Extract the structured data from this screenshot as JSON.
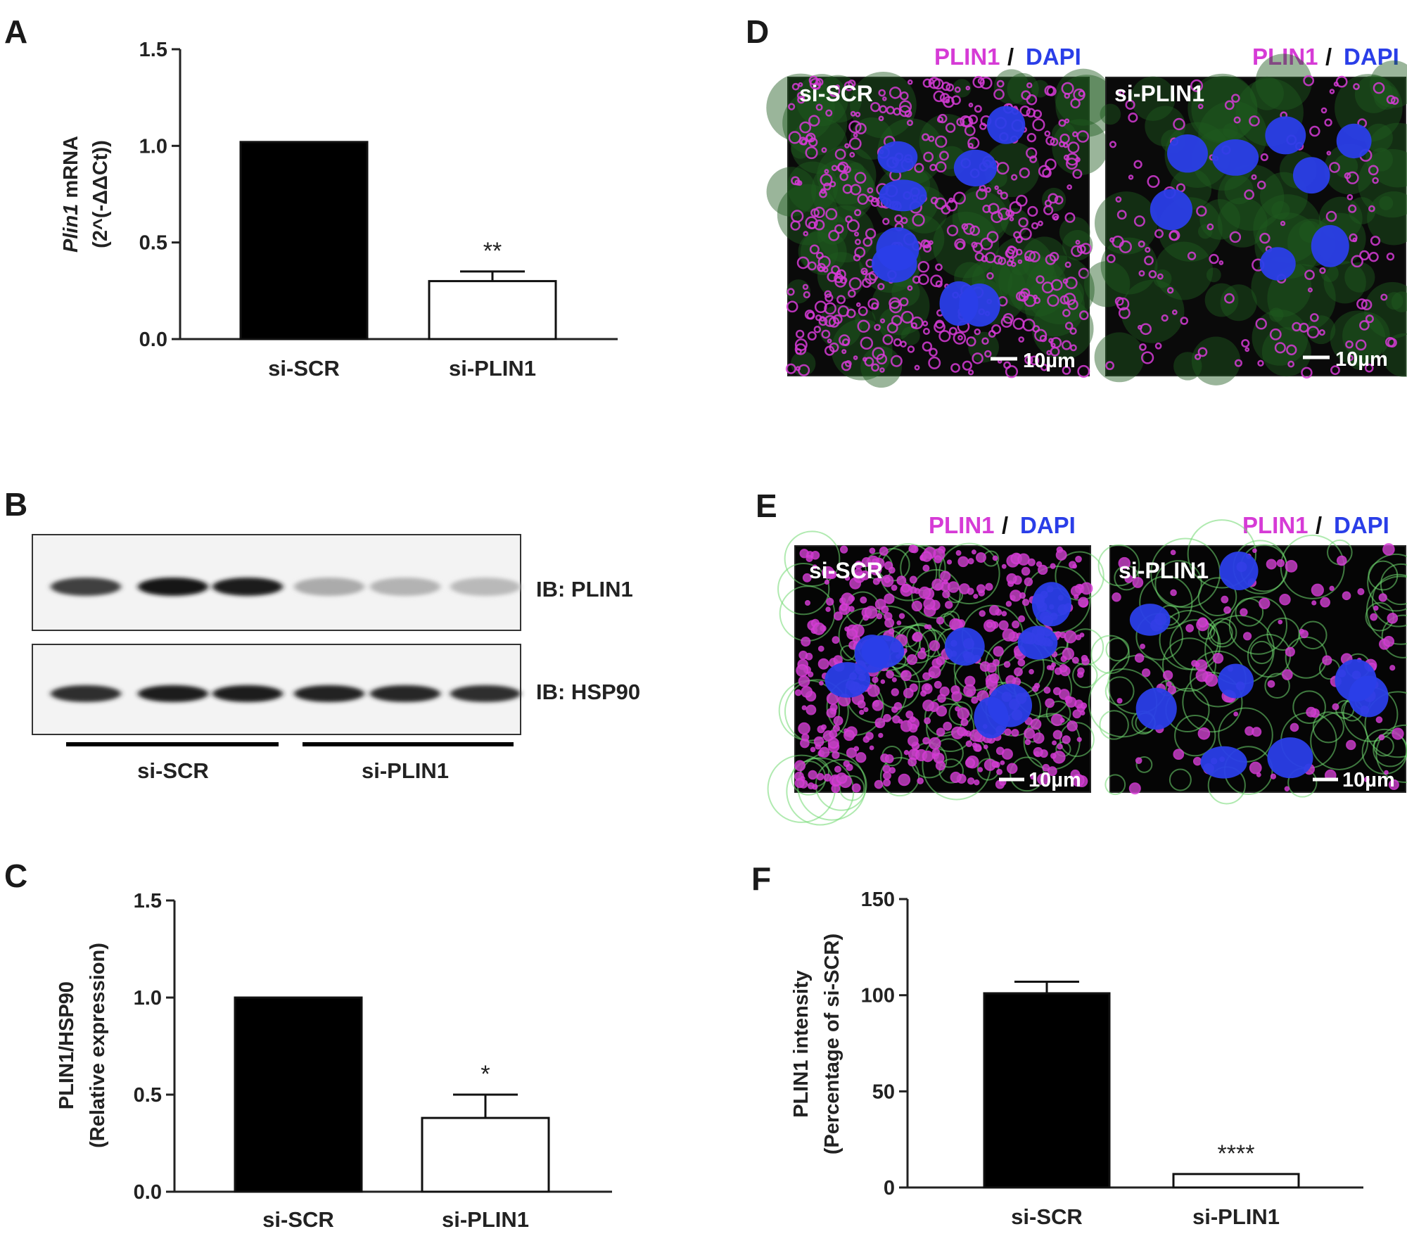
{
  "panels": {
    "A": "A",
    "B": "B",
    "C": "C",
    "D": "D",
    "E": "E",
    "F": "F"
  },
  "colors": {
    "plin1": "#d63bd6",
    "dapi": "#2a3ee8",
    "bar_scr": "#000000",
    "bar_plin1": "#ffffff"
  },
  "chart_data": [
    {
      "panel": "A",
      "type": "bar",
      "categories": [
        "si-SCR",
        "si-PLIN1"
      ],
      "values": [
        1.02,
        0.3
      ],
      "errors": [
        0,
        0.05
      ],
      "significance": [
        "",
        "**"
      ],
      "ylabel_italic": "Plin1",
      "ylabel_rest": " mRNA",
      "ylabel_line2": "(2^(-ΔΔCt))",
      "ylim": [
        0,
        1.5
      ],
      "yticks": [
        "0.0",
        "0.5",
        "1.0",
        "1.5"
      ],
      "grid": false
    },
    {
      "panel": "C",
      "type": "bar",
      "categories": [
        "si-SCR",
        "si-PLIN1"
      ],
      "values": [
        1.0,
        0.38
      ],
      "errors": [
        0,
        0.12
      ],
      "significance": [
        "",
        "*"
      ],
      "ylabel_line1": "PLIN1/HSP90",
      "ylabel_line2": "(Relative expression)",
      "ylim": [
        0,
        1.5
      ],
      "yticks": [
        "0.0",
        "0.5",
        "1.0",
        "1.5"
      ],
      "grid": false
    },
    {
      "panel": "F",
      "type": "bar",
      "categories": [
        "si-SCR",
        "si-PLIN1"
      ],
      "values": [
        101,
        7
      ],
      "errors": [
        6,
        0
      ],
      "significance": [
        "",
        "****"
      ],
      "ylabel_line1": "PLIN1 intensity",
      "ylabel_line2": "(Percentage of si-SCR)",
      "ylim": [
        0,
        150
      ],
      "yticks": [
        "0",
        "50",
        "100",
        "150"
      ],
      "grid": false
    }
  ],
  "blot": {
    "rows": [
      {
        "label": "IB: PLIN1",
        "intensities": [
          0.75,
          0.95,
          0.92,
          0.22,
          0.18,
          0.15
        ]
      },
      {
        "label": "IB: HSP90",
        "intensities": [
          0.85,
          0.92,
          0.92,
          0.9,
          0.88,
          0.85
        ]
      }
    ],
    "groups": [
      "si-SCR",
      "si-PLIN1"
    ]
  },
  "micrographs": {
    "D": {
      "stain_a": "PLIN1",
      "sep": "/",
      "stain_b": "DAPI",
      "images": [
        {
          "label": "si-SCR",
          "scale": "10µm",
          "lipid_density": 0.9
        },
        {
          "label": "si-PLIN1",
          "scale": "10µm",
          "lipid_density": 0.25
        }
      ]
    },
    "E": {
      "stain_a": "PLIN1",
      "sep": "/",
      "stain_b": "DAPI",
      "images": [
        {
          "label": "si-SCR",
          "scale": "10µm",
          "lipid_density": 0.95
        },
        {
          "label": "si-PLIN1",
          "scale": "10µm",
          "lipid_density": 0.2
        }
      ]
    }
  }
}
